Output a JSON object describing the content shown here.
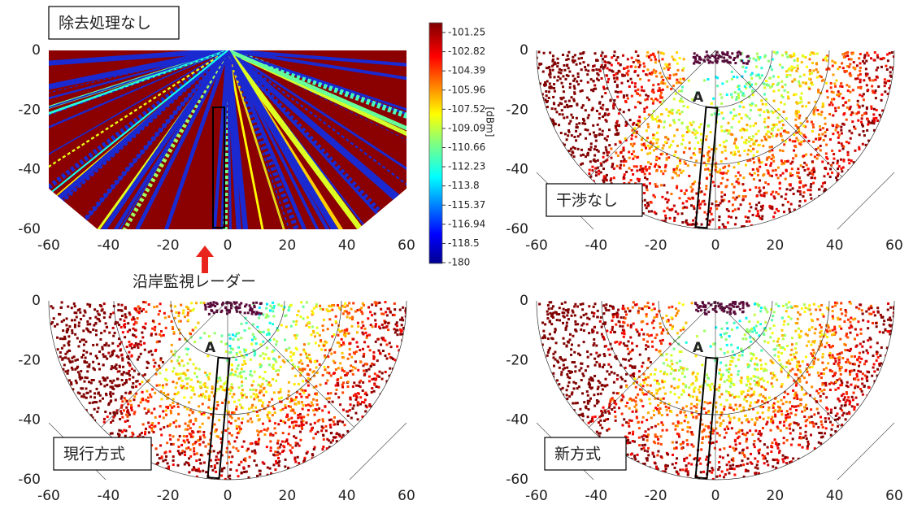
{
  "panels": [
    {
      "label": "除去処理なし",
      "xticks": [
        -60,
        -40,
        -20,
        0,
        20,
        40,
        60
      ],
      "yticks": [
        0,
        -20,
        -40,
        -60
      ]
    },
    {
      "label": "干渉なし",
      "marker": "A",
      "xticks": [
        -60,
        -40,
        -20,
        0,
        20,
        40,
        60
      ],
      "yticks": [
        0,
        -20,
        -40,
        -60
      ]
    },
    {
      "label": "現行方式",
      "marker": "A",
      "xticks": [
        -60,
        -40,
        -20,
        0,
        20,
        40,
        60
      ],
      "yticks": [
        0,
        -20,
        -40,
        -60
      ]
    },
    {
      "label": "新方式",
      "marker": "A",
      "xticks": [
        -60,
        -40,
        -20,
        0,
        20,
        40,
        60
      ],
      "yticks": [
        0,
        -20,
        -40,
        -60
      ]
    }
  ],
  "colorbar": {
    "ticks": [
      "-101.25",
      "-102.82",
      "-104.39",
      "-105.96",
      "-107.52",
      "-109.09",
      "-110.66",
      "-112.23",
      "-113.8",
      "-115.37",
      "-116.94",
      "-118.5",
      "-180"
    ],
    "unit": "[dBm]"
  },
  "annotation": "沿岸監視レーダー"
}
